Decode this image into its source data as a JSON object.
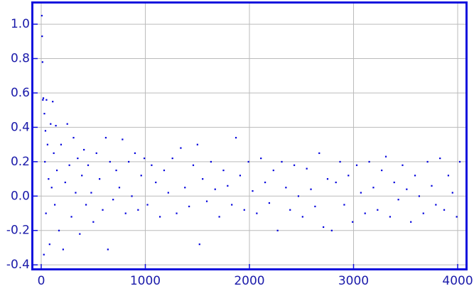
{
  "chart_data": {
    "type": "scatter",
    "xlim": [
      -75,
      4075
    ],
    "ylim": [
      -0.42,
      1.12
    ],
    "xticks": [
      0,
      1000,
      2000,
      3000,
      4000
    ],
    "yticks": [
      -0.4,
      -0.2,
      {
        "value": 0,
        "label": "0.0"
      },
      0.2,
      0.4,
      0.6,
      0.8,
      {
        "value": 1,
        "label": "1.0"
      }
    ],
    "grid": true,
    "series": [
      {
        "color": "#0000dd",
        "x": [
          5,
          8,
          12,
          15,
          20,
          25,
          30,
          35,
          40,
          45,
          50,
          60,
          70,
          80,
          90,
          100,
          110,
          120,
          130,
          140,
          150,
          170,
          190,
          210,
          230,
          250,
          270,
          290,
          310,
          330,
          350,
          370,
          390,
          410,
          430,
          450,
          480,
          500,
          530,
          560,
          590,
          620,
          640,
          660,
          690,
          720,
          750,
          780,
          810,
          840,
          870,
          900,
          930,
          960,
          990,
          1020,
          1060,
          1100,
          1140,
          1180,
          1220,
          1260,
          1300,
          1340,
          1380,
          1420,
          1460,
          1500,
          1520,
          1550,
          1590,
          1630,
          1670,
          1710,
          1750,
          1790,
          1830,
          1870,
          1910,
          1950,
          1990,
          2030,
          2070,
          2110,
          2150,
          2190,
          2230,
          2270,
          2310,
          2350,
          2390,
          2430,
          2470,
          2510,
          2550,
          2590,
          2630,
          2670,
          2710,
          2750,
          2790,
          2830,
          2870,
          2910,
          2950,
          2990,
          3030,
          3070,
          3110,
          3150,
          3190,
          3230,
          3270,
          3310,
          3350,
          3390,
          3430,
          3470,
          3510,
          3550,
          3590,
          3630,
          3670,
          3710,
          3750,
          3790,
          3830,
          3870,
          3910,
          3950,
          3990,
          4020
        ],
        "values": [
          1.05,
          0.93,
          0.78,
          0.56,
          0.57,
          -0.34,
          0.48,
          0.2,
          0.38,
          -0.1,
          0.56,
          0.3,
          0.1,
          -0.28,
          0.42,
          0.05,
          0.55,
          0.25,
          -0.05,
          0.41,
          0.15,
          -0.2,
          0.3,
          -0.31,
          0.08,
          0.42,
          0.18,
          -0.12,
          0.34,
          0.02,
          0.22,
          -0.22,
          0.12,
          0.27,
          -0.05,
          0.18,
          0.02,
          -0.15,
          0.25,
          0.1,
          -0.08,
          0.34,
          -0.31,
          0.2,
          -0.02,
          0.15,
          0.05,
          0.33,
          -0.1,
          0.2,
          0,
          0.25,
          -0.08,
          0.12,
          0.22,
          -0.05,
          0.18,
          0.08,
          -0.12,
          0.15,
          0.02,
          0.22,
          -0.1,
          0.28,
          0.05,
          -0.06,
          0.18,
          0.3,
          -0.28,
          0.1,
          -0.03,
          0.2,
          0.04,
          -0.12,
          0.15,
          0.06,
          -0.05,
          0.34,
          0.12,
          -0.08,
          0.2,
          0.03,
          -0.1,
          0.22,
          0.08,
          -0.04,
          0.15,
          -0.2,
          0.2,
          0.05,
          -0.08,
          0.18,
          0,
          -0.12,
          0.16,
          0.04,
          -0.06,
          0.25,
          -0.18,
          0.1,
          -0.2,
          0.08,
          0.2,
          -0.05,
          0.12,
          -0.15,
          0.18,
          0.02,
          -0.1,
          0.2,
          0.05,
          -0.08,
          0.15,
          0.23,
          -0.12,
          0.08,
          -0.02,
          0.18,
          0.04,
          -0.15,
          0.12,
          0,
          -0.1,
          0.2,
          0.06,
          -0.05,
          0.22,
          -0.08,
          0.12,
          0.02,
          -0.12,
          0.2
        ]
      }
    ]
  }
}
